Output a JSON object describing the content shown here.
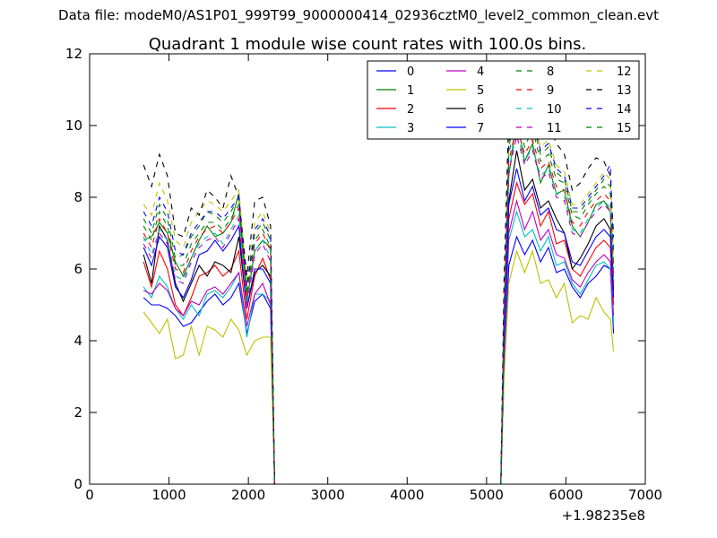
{
  "suptitle": "Data file: modeM0/AS1P01_999T99_9000000414_02936cztM0_level2_common_clean.evt",
  "chart_data": {
    "type": "line",
    "title": "Quadrant 1 module wise count rates with 100.0s bins.",
    "xlabel": "",
    "ylabel": "",
    "xlim": [
      0,
      7000
    ],
    "ylim": [
      0,
      12
    ],
    "x_offset_label": "+1.98235e8",
    "xticks": [
      "0",
      "1000",
      "2000",
      "3000",
      "4000",
      "5000",
      "6000",
      "7000"
    ],
    "yticks": [
      "0",
      "2",
      "4",
      "6",
      "8",
      "10",
      "12"
    ],
    "grid": false,
    "legend_position": "top-right",
    "legend_columns": 4,
    "x": [
      680,
      780,
      880,
      980,
      1080,
      1180,
      1280,
      1380,
      1480,
      1580,
      1680,
      1780,
      1880,
      1980,
      2080,
      2180,
      2280,
      2330,
      2400,
      2500,
      3000,
      4000,
      5000,
      5180,
      5220,
      5280,
      5380,
      5480,
      5580,
      5680,
      5780,
      5880,
      5980,
      6080,
      6180,
      6280,
      6380,
      6480,
      6560,
      6600
    ],
    "series": [
      {
        "name": "0",
        "color": "#0000ff",
        "dashed": false,
        "values": [
          5.2,
          5.0,
          5.0,
          4.9,
          4.7,
          4.4,
          4.5,
          4.8,
          5.1,
          5.3,
          5.0,
          5.2,
          5.6,
          4.2,
          5.1,
          5.3,
          4.9,
          0.0,
          0.0,
          0.0,
          0.0,
          0.0,
          0.0,
          0.0,
          3.0,
          6.1,
          6.9,
          6.4,
          6.8,
          6.2,
          6.6,
          5.9,
          6.0,
          5.5,
          5.2,
          5.6,
          5.8,
          6.1,
          6.0,
          4.2
        ]
      },
      {
        "name": "1",
        "color": "#008000",
        "dashed": false,
        "values": [
          6.8,
          6.9,
          7.3,
          7.0,
          6.2,
          5.8,
          6.3,
          6.8,
          7.2,
          6.9,
          7.0,
          7.3,
          8.1,
          5.1,
          6.5,
          6.8,
          6.6,
          0.0,
          0.0,
          0.0,
          0.0,
          0.0,
          0.0,
          0.0,
          4.4,
          8.6,
          10.2,
          9.0,
          9.5,
          8.4,
          8.9,
          8.1,
          8.2,
          7.2,
          6.9,
          7.3,
          7.8,
          7.9,
          7.6,
          5.6
        ]
      },
      {
        "name": "2",
        "color": "#ff0000",
        "dashed": false,
        "values": [
          6.2,
          5.5,
          6.5,
          6.0,
          5.0,
          4.7,
          5.2,
          5.8,
          5.9,
          6.1,
          5.8,
          6.0,
          6.5,
          4.6,
          5.8,
          6.3,
          5.7,
          0.0,
          0.0,
          0.0,
          0.0,
          0.0,
          0.0,
          0.0,
          3.7,
          7.4,
          8.4,
          7.8,
          8.1,
          7.2,
          7.6,
          6.7,
          6.8,
          6.0,
          5.8,
          6.2,
          6.6,
          6.8,
          6.6,
          5.0
        ]
      },
      {
        "name": "3",
        "color": "#00bfbf",
        "dashed": false,
        "values": [
          5.5,
          5.2,
          5.8,
          5.5,
          4.9,
          4.6,
          5.0,
          4.7,
          5.3,
          5.4,
          5.2,
          5.5,
          5.9,
          4.1,
          5.3,
          5.3,
          5.1,
          0.0,
          0.0,
          0.0,
          0.0,
          0.0,
          0.0,
          0.0,
          3.2,
          6.8,
          7.6,
          6.9,
          7.1,
          6.5,
          6.9,
          6.1,
          6.2,
          5.6,
          5.3,
          5.7,
          6.1,
          6.2,
          6.0,
          4.5
        ]
      },
      {
        "name": "4",
        "color": "#bf00bf",
        "dashed": false,
        "values": [
          5.4,
          5.3,
          5.6,
          5.4,
          4.9,
          4.7,
          5.1,
          5.0,
          5.4,
          5.5,
          5.3,
          5.6,
          5.9,
          4.4,
          5.3,
          5.6,
          5.0,
          0.0,
          0.0,
          0.0,
          0.0,
          0.0,
          0.0,
          0.0,
          3.4,
          7.0,
          7.9,
          7.1,
          7.6,
          6.8,
          7.1,
          6.4,
          6.3,
          5.7,
          5.5,
          5.9,
          6.2,
          6.4,
          6.2,
          4.7
        ]
      },
      {
        "name": "5",
        "color": "#bfbf00",
        "dashed": false,
        "values": [
          4.8,
          4.5,
          4.2,
          4.6,
          3.5,
          3.6,
          4.4,
          3.6,
          4.4,
          4.3,
          4.1,
          4.6,
          4.3,
          3.6,
          4.0,
          4.1,
          4.1,
          0.0,
          0.0,
          0.0,
          0.0,
          0.0,
          0.0,
          0.0,
          2.9,
          5.6,
          6.5,
          5.9,
          6.5,
          5.6,
          5.7,
          5.2,
          5.6,
          4.5,
          4.7,
          4.6,
          5.2,
          4.8,
          4.6,
          3.7
        ]
      },
      {
        "name": "6",
        "color": "#000000",
        "dashed": false,
        "values": [
          6.4,
          5.6,
          7.2,
          6.8,
          5.6,
          5.1,
          5.6,
          6.1,
          5.8,
          6.2,
          6.1,
          5.9,
          6.9,
          4.9,
          5.9,
          6.1,
          5.8,
          0.0,
          0.0,
          0.0,
          0.0,
          0.0,
          0.0,
          0.0,
          4.0,
          7.9,
          9.3,
          8.2,
          8.5,
          7.7,
          7.9,
          7.4,
          7.0,
          6.0,
          6.3,
          6.7,
          7.2,
          7.4,
          7.1,
          5.4
        ]
      },
      {
        "name": "7",
        "color": "#0000ff",
        "dashed": false,
        "values": [
          6.6,
          6.1,
          6.9,
          6.6,
          5.5,
          5.2,
          5.7,
          6.4,
          6.5,
          6.8,
          6.5,
          6.8,
          7.2,
          4.9,
          6.0,
          6.0,
          5.6,
          0.0,
          0.0,
          0.0,
          0.0,
          0.0,
          0.0,
          0.0,
          3.8,
          7.8,
          8.8,
          7.9,
          8.3,
          7.5,
          7.7,
          7.1,
          7.0,
          6.2,
          6.1,
          6.5,
          6.9,
          7.1,
          6.9,
          5.2
        ]
      },
      {
        "name": "8",
        "color": "#008000",
        "dashed": true,
        "values": [
          7.4,
          7.0,
          7.8,
          7.4,
          6.3,
          6.4,
          6.9,
          7.2,
          7.6,
          7.5,
          7.3,
          7.6,
          8.0,
          5.4,
          7.0,
          7.3,
          6.8,
          0.0,
          0.0,
          0.0,
          0.0,
          0.0,
          0.0,
          0.0,
          4.9,
          9.4,
          10.5,
          9.6,
          10.1,
          9.2,
          9.4,
          8.7,
          8.5,
          7.6,
          7.6,
          7.9,
          8.2,
          8.5,
          8.3,
          6.1
        ]
      },
      {
        "name": "9",
        "color": "#ff0000",
        "dashed": true,
        "values": [
          7.0,
          6.6,
          7.4,
          7.0,
          6.0,
          5.9,
          6.5,
          6.9,
          7.1,
          7.2,
          7.0,
          7.3,
          7.7,
          5.2,
          6.7,
          7.0,
          6.5,
          0.0,
          0.0,
          0.0,
          0.0,
          0.0,
          0.0,
          0.0,
          4.6,
          9.0,
          10.0,
          9.2,
          9.6,
          8.8,
          9.0,
          8.3,
          8.2,
          7.3,
          7.2,
          7.6,
          7.9,
          8.1,
          7.9,
          5.8
        ]
      },
      {
        "name": "10",
        "color": "#00bfbf",
        "dashed": true,
        "values": [
          6.9,
          6.4,
          7.1,
          6.8,
          5.8,
          5.7,
          6.3,
          6.7,
          6.9,
          7.0,
          6.7,
          7.1,
          7.5,
          5.0,
          6.5,
          6.8,
          6.3,
          0.0,
          0.0,
          0.0,
          0.0,
          0.0,
          0.0,
          0.0,
          4.5,
          8.8,
          9.8,
          9.0,
          9.4,
          8.6,
          8.8,
          8.1,
          8.0,
          7.1,
          7.0,
          7.4,
          7.7,
          7.9,
          7.7,
          5.7
        ]
      },
      {
        "name": "11",
        "color": "#bf00bf",
        "dashed": true,
        "values": [
          6.7,
          6.3,
          7.0,
          6.7,
          5.7,
          5.6,
          6.2,
          6.6,
          6.8,
          6.9,
          6.6,
          7.0,
          7.4,
          4.9,
          6.4,
          6.7,
          6.2,
          0.0,
          0.0,
          0.0,
          0.0,
          0.0,
          0.0,
          0.0,
          4.4,
          8.7,
          9.7,
          8.9,
          9.3,
          8.5,
          8.7,
          8.0,
          7.9,
          7.0,
          6.9,
          7.3,
          7.6,
          7.8,
          7.6,
          5.6
        ]
      },
      {
        "name": "12",
        "color": "#bfbf00",
        "dashed": true,
        "values": [
          7.8,
          7.5,
          8.4,
          7.9,
          6.8,
          6.6,
          7.3,
          7.6,
          7.9,
          7.8,
          7.6,
          7.9,
          8.2,
          5.6,
          7.3,
          7.6,
          7.0,
          0.0,
          0.0,
          0.0,
          0.0,
          0.0,
          0.0,
          0.0,
          5.1,
          9.7,
          10.8,
          9.8,
          10.3,
          9.4,
          9.6,
          8.9,
          8.7,
          7.8,
          7.8,
          8.1,
          8.4,
          8.7,
          8.5,
          6.3
        ]
      },
      {
        "name": "13",
        "color": "#000000",
        "dashed": true,
        "values": [
          8.9,
          8.3,
          9.2,
          8.6,
          7.0,
          6.9,
          7.7,
          7.5,
          8.2,
          8.0,
          7.7,
          8.6,
          8.0,
          5.8,
          7.9,
          8.0,
          7.2,
          0.0,
          0.0,
          0.0,
          0.0,
          0.0,
          0.0,
          0.0,
          5.6,
          10.4,
          11.0,
          10.3,
          10.6,
          9.9,
          10.0,
          9.5,
          9.2,
          8.2,
          8.4,
          8.8,
          9.1,
          9.0,
          8.6,
          6.9
        ]
      },
      {
        "name": "14",
        "color": "#0000ff",
        "dashed": true,
        "values": [
          7.6,
          7.2,
          8.0,
          7.6,
          6.5,
          6.4,
          7.0,
          7.3,
          7.6,
          7.6,
          7.4,
          7.7,
          8.0,
          5.5,
          7.1,
          7.4,
          6.9,
          0.0,
          0.0,
          0.0,
          0.0,
          0.0,
          0.0,
          0.0,
          5.0,
          9.5,
          10.6,
          9.7,
          10.2,
          9.3,
          9.5,
          8.8,
          8.6,
          7.7,
          7.7,
          8.0,
          8.3,
          8.6,
          8.9,
          6.4
        ]
      },
      {
        "name": "15",
        "color": "#008000",
        "dashed": true,
        "values": [
          7.2,
          6.8,
          7.6,
          7.2,
          6.1,
          6.1,
          6.7,
          7.0,
          7.3,
          7.3,
          7.1,
          7.4,
          7.8,
          5.3,
          6.8,
          7.1,
          6.6,
          0.0,
          0.0,
          0.0,
          0.0,
          0.0,
          0.0,
          0.0,
          4.7,
          9.2,
          10.3,
          9.4,
          9.9,
          9.0,
          9.2,
          8.5,
          8.4,
          7.5,
          7.4,
          7.8,
          8.1,
          8.3,
          8.1,
          6.0
        ]
      }
    ]
  }
}
